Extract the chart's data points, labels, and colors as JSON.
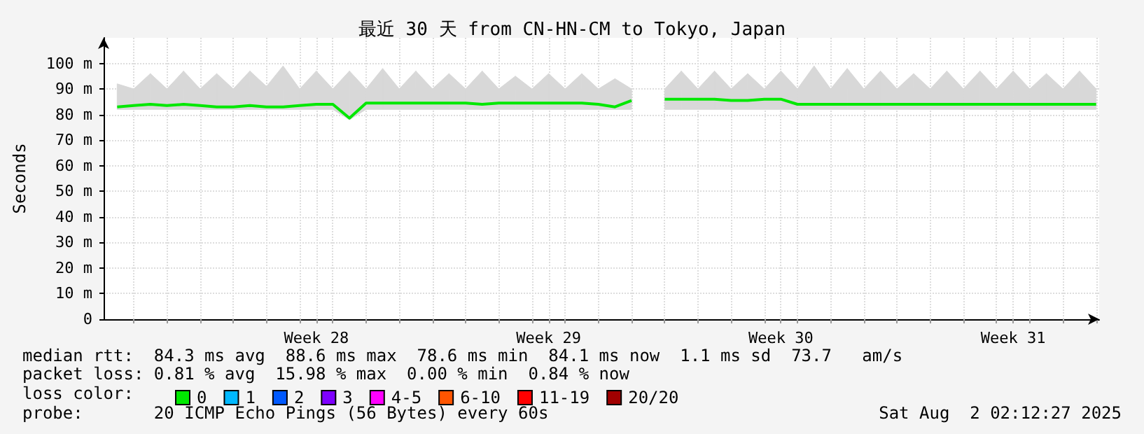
{
  "chart_data": {
    "type": "line",
    "title": "最近 30 天 from CN-HN-CM to Tokyo, Japan",
    "ylabel": "Seconds",
    "legend_title": "loss color:",
    "x": [
      "2025-07-03T12:00",
      "2025-07-04T00:00",
      "2025-07-04T12:00",
      "2025-07-05T00:00",
      "2025-07-05T12:00",
      "2025-07-06T00:00",
      "2025-07-06T12:00",
      "2025-07-07T00:00",
      "2025-07-07T12:00",
      "2025-07-08T00:00",
      "2025-07-08T12:00",
      "2025-07-09T00:00",
      "2025-07-09T12:00",
      "2025-07-10T00:00",
      "2025-07-10T12:00",
      "2025-07-11T00:00",
      "2025-07-11T12:00",
      "2025-07-12T00:00",
      "2025-07-12T12:00",
      "2025-07-13T00:00",
      "2025-07-13T12:00",
      "2025-07-14T00:00",
      "2025-07-14T12:00",
      "2025-07-15T00:00",
      "2025-07-15T12:00",
      "2025-07-16T00:00",
      "2025-07-16T12:00",
      "2025-07-17T00:00",
      "2025-07-17T12:00",
      "2025-07-18T00:00",
      "2025-07-18T12:00",
      "2025-07-19T00:00",
      "2025-07-19T12:00",
      "2025-07-20T00:00",
      "2025-07-20T12:00",
      "2025-07-21T00:00",
      "2025-07-21T12:00",
      "2025-07-22T00:00",
      "2025-07-22T12:00",
      "2025-07-23T00:00",
      "2025-07-23T12:00",
      "2025-07-24T00:00",
      "2025-07-24T12:00",
      "2025-07-25T00:00",
      "2025-07-25T12:00",
      "2025-07-26T00:00",
      "2025-07-26T12:00",
      "2025-07-27T00:00",
      "2025-07-27T12:00",
      "2025-07-28T00:00",
      "2025-07-28T12:00",
      "2025-07-29T00:00",
      "2025-07-29T12:00",
      "2025-07-30T00:00",
      "2025-07-30T12:00",
      "2025-07-31T00:00",
      "2025-07-31T12:00",
      "2025-08-01T00:00",
      "2025-08-01T12:00",
      "2025-08-02T00:00"
    ],
    "series": [
      {
        "name": "0",
        "color": "#00e800",
        "values": [
          83,
          83.5,
          84,
          83.5,
          84,
          83.5,
          83,
          83,
          83.5,
          83,
          83,
          83.5,
          84,
          84,
          78.6,
          84.5,
          84.5,
          84.5,
          84.5,
          84.5,
          84.5,
          84.5,
          84,
          84.5,
          84.5,
          84.5,
          84.5,
          84.5,
          84.5,
          84,
          83,
          85.5,
          null,
          86,
          86,
          86,
          86,
          85.5,
          85.5,
          86,
          86,
          84,
          84,
          84,
          84,
          84,
          84,
          84,
          84,
          84,
          84,
          84,
          84,
          84,
          84,
          84,
          84,
          84,
          84,
          84
        ],
        "lower": [
          82,
          82,
          82,
          82,
          82,
          82,
          82,
          82,
          82,
          82,
          82,
          82,
          82,
          82,
          78,
          82,
          82,
          82,
          82,
          82,
          82,
          82,
          82,
          82,
          82,
          82,
          82,
          82,
          82,
          82,
          82,
          82,
          null,
          82,
          82,
          82,
          82,
          82,
          82,
          82,
          82,
          82,
          82,
          82,
          82,
          82,
          82,
          82,
          82,
          82,
          82,
          82,
          82,
          82,
          82,
          82,
          82,
          82,
          82,
          82
        ],
        "upper": [
          92,
          90,
          96,
          90,
          97,
          90,
          96,
          90,
          97,
          91,
          99,
          90,
          97,
          90,
          97,
          90,
          98,
          90,
          97,
          90,
          96,
          90,
          97,
          90,
          95,
          90,
          96,
          90,
          96,
          90,
          94,
          90,
          null,
          90,
          97,
          90,
          97,
          90,
          96,
          90,
          97,
          90,
          99,
          90,
          98,
          90,
          97,
          90,
          96,
          90,
          97,
          90,
          97,
          90,
          97,
          90,
          96,
          90,
          97,
          90
        ]
      },
      {
        "name": "1",
        "color": "#00b8ff",
        "values": [
          null,
          null,
          null,
          null,
          null,
          null,
          null,
          null,
          null,
          null,
          null,
          null,
          null,
          null,
          null,
          null,
          null,
          null,
          null,
          null,
          null,
          null,
          null,
          null,
          null,
          null,
          null,
          null,
          null,
          null,
          null,
          null,
          null,
          null,
          null,
          null,
          null,
          null,
          null,
          null,
          null,
          null,
          null,
          null,
          null,
          null,
          null,
          null,
          null,
          null,
          null,
          null,
          null,
          null,
          null,
          null,
          null,
          null,
          null,
          null
        ]
      },
      {
        "name": "2",
        "color": "#0059ff",
        "values": [
          null,
          null,
          null,
          null,
          null,
          null,
          null,
          null,
          null,
          null,
          null,
          null,
          null,
          null,
          null,
          null,
          null,
          null,
          null,
          null,
          null,
          null,
          null,
          null,
          null,
          null,
          null,
          null,
          null,
          null,
          null,
          null,
          null,
          null,
          null,
          null,
          null,
          null,
          null,
          null,
          null,
          null,
          null,
          null,
          null,
          null,
          null,
          null,
          null,
          null,
          null,
          null,
          null,
          null,
          null,
          null,
          null,
          null,
          null,
          null
        ]
      },
      {
        "name": "3",
        "color": "#7e00ff",
        "values": [
          null,
          null,
          null,
          null,
          null,
          null,
          null,
          null,
          null,
          null,
          null,
          null,
          null,
          null,
          null,
          null,
          null,
          null,
          null,
          null,
          null,
          null,
          null,
          null,
          null,
          null,
          null,
          null,
          null,
          null,
          null,
          null,
          null,
          null,
          null,
          null,
          null,
          null,
          null,
          null,
          null,
          null,
          null,
          null,
          null,
          null,
          null,
          null,
          null,
          null,
          null,
          null,
          null,
          null,
          null,
          null,
          null,
          null,
          null,
          null
        ]
      },
      {
        "name": "4-5",
        "color": "#ff00ff",
        "values": [
          null,
          null,
          null,
          null,
          null,
          null,
          null,
          null,
          null,
          null,
          null,
          null,
          null,
          null,
          null,
          null,
          null,
          null,
          null,
          null,
          null,
          null,
          null,
          null,
          null,
          null,
          null,
          null,
          null,
          null,
          null,
          null,
          null,
          null,
          null,
          null,
          null,
          null,
          null,
          null,
          null,
          null,
          null,
          null,
          null,
          null,
          null,
          null,
          null,
          null,
          null,
          null,
          null,
          null,
          null,
          null,
          null,
          null,
          null,
          null
        ]
      },
      {
        "name": "6-10",
        "color": "#ff5500",
        "values": [
          null,
          null,
          null,
          null,
          null,
          null,
          null,
          null,
          null,
          null,
          null,
          null,
          null,
          null,
          null,
          null,
          null,
          null,
          null,
          null,
          null,
          null,
          null,
          null,
          null,
          null,
          null,
          null,
          null,
          null,
          null,
          null,
          null,
          null,
          null,
          null,
          null,
          null,
          null,
          null,
          null,
          null,
          null,
          null,
          null,
          null,
          null,
          null,
          null,
          null,
          null,
          null,
          null,
          null,
          null,
          null,
          null,
          null,
          null,
          null
        ]
      },
      {
        "name": "11-19",
        "color": "#ff0000",
        "values": [
          null,
          null,
          null,
          null,
          null,
          null,
          null,
          null,
          null,
          null,
          null,
          null,
          null,
          null,
          null,
          null,
          null,
          null,
          null,
          null,
          null,
          null,
          null,
          null,
          null,
          null,
          null,
          null,
          null,
          null,
          null,
          null,
          null,
          null,
          null,
          null,
          null,
          null,
          null,
          null,
          null,
          null,
          null,
          null,
          null,
          null,
          null,
          null,
          null,
          null,
          null,
          null,
          null,
          null,
          null,
          null,
          null,
          null,
          null,
          null
        ]
      },
      {
        "name": "20/20",
        "color": "#a10000",
        "values": [
          null,
          null,
          null,
          null,
          null,
          null,
          null,
          null,
          null,
          null,
          null,
          null,
          null,
          null,
          null,
          null,
          null,
          null,
          null,
          null,
          null,
          null,
          null,
          null,
          null,
          null,
          null,
          null,
          null,
          null,
          null,
          null,
          null,
          null,
          null,
          null,
          null,
          null,
          null,
          null,
          null,
          null,
          null,
          null,
          null,
          null,
          null,
          null,
          null,
          null,
          null,
          null,
          null,
          null,
          null,
          null,
          null,
          null,
          null,
          null
        ]
      }
    ],
    "xlim": [
      "2025-07-03T02:12",
      "2025-08-02T02:12"
    ],
    "xticks": [
      {
        "value": "2025-07-04",
        "label": null
      },
      {
        "value": "2025-07-05",
        "label": null
      },
      {
        "value": "2025-07-06",
        "label": null
      },
      {
        "value": "2025-07-07",
        "label": null
      },
      {
        "value": "2025-07-08",
        "label": null
      },
      {
        "value": "2025-07-09",
        "label": null
      },
      {
        "value": "2025-07-10",
        "label": null
      },
      {
        "value": "2025-07-11",
        "label": null
      },
      {
        "value": "2025-07-12",
        "label": null
      },
      {
        "value": "2025-07-13",
        "label": null
      },
      {
        "value": "2025-07-14",
        "label": null
      },
      {
        "value": "2025-07-15",
        "label": null
      },
      {
        "value": "2025-07-16",
        "label": null
      },
      {
        "value": "2025-07-17",
        "label": null
      },
      {
        "value": "2025-07-18",
        "label": null
      },
      {
        "value": "2025-07-19",
        "label": null
      },
      {
        "value": "2025-07-20",
        "label": null
      },
      {
        "value": "2025-07-21",
        "label": null
      },
      {
        "value": "2025-07-22",
        "label": null
      },
      {
        "value": "2025-07-23",
        "label": null
      },
      {
        "value": "2025-07-24",
        "label": null
      },
      {
        "value": "2025-07-25",
        "label": null
      },
      {
        "value": "2025-07-26",
        "label": null
      },
      {
        "value": "2025-07-27",
        "label": null
      },
      {
        "value": "2025-07-28",
        "label": null
      },
      {
        "value": "2025-07-29",
        "label": null
      },
      {
        "value": "2025-07-30",
        "label": null
      },
      {
        "value": "2025-07-31",
        "label": null
      },
      {
        "value": "2025-08-01",
        "label": null
      },
      {
        "value": "2025-08-02",
        "label": null
      },
      {
        "value": "2025-07-09T12:00",
        "label": "Week 28"
      },
      {
        "value": "2025-07-16T12:00",
        "label": "Week 29"
      },
      {
        "value": "2025-07-23T12:00",
        "label": "Week 30"
      },
      {
        "value": "2025-07-30T12:00",
        "label": "Week 31"
      }
    ],
    "ylim": [
      0,
      110
    ],
    "yticks": [
      {
        "value": 0,
        "label": "0"
      },
      {
        "value": 10,
        "label": "10 m"
      },
      {
        "value": 20,
        "label": "20 m"
      },
      {
        "value": 30,
        "label": "30 m"
      },
      {
        "value": 40,
        "label": "40 m"
      },
      {
        "value": 50,
        "label": "50 m"
      },
      {
        "value": 60,
        "label": "60 m"
      },
      {
        "value": 70,
        "label": "70 m"
      },
      {
        "value": 80,
        "label": "80 m"
      },
      {
        "value": 90,
        "label": "90 m"
      },
      {
        "value": 100,
        "label": "100 m"
      }
    ],
    "grid": true,
    "legend": "bottom left",
    "marker": "none",
    "line_style": "solid",
    "annotations": [
      "median rtt:  84.3 ms avg  88.6 ms max  78.6 ms min  84.1 ms now  1.1 ms sd  73.7   am/s",
      "packet loss: 0.81 % avg  15.98 % max  0.00 % min  0.84 % now",
      "probe:       20 ICMP Echo Pings (56 Bytes) every 60s",
      "Sat Aug  2 02:12:27 2025"
    ]
  }
}
